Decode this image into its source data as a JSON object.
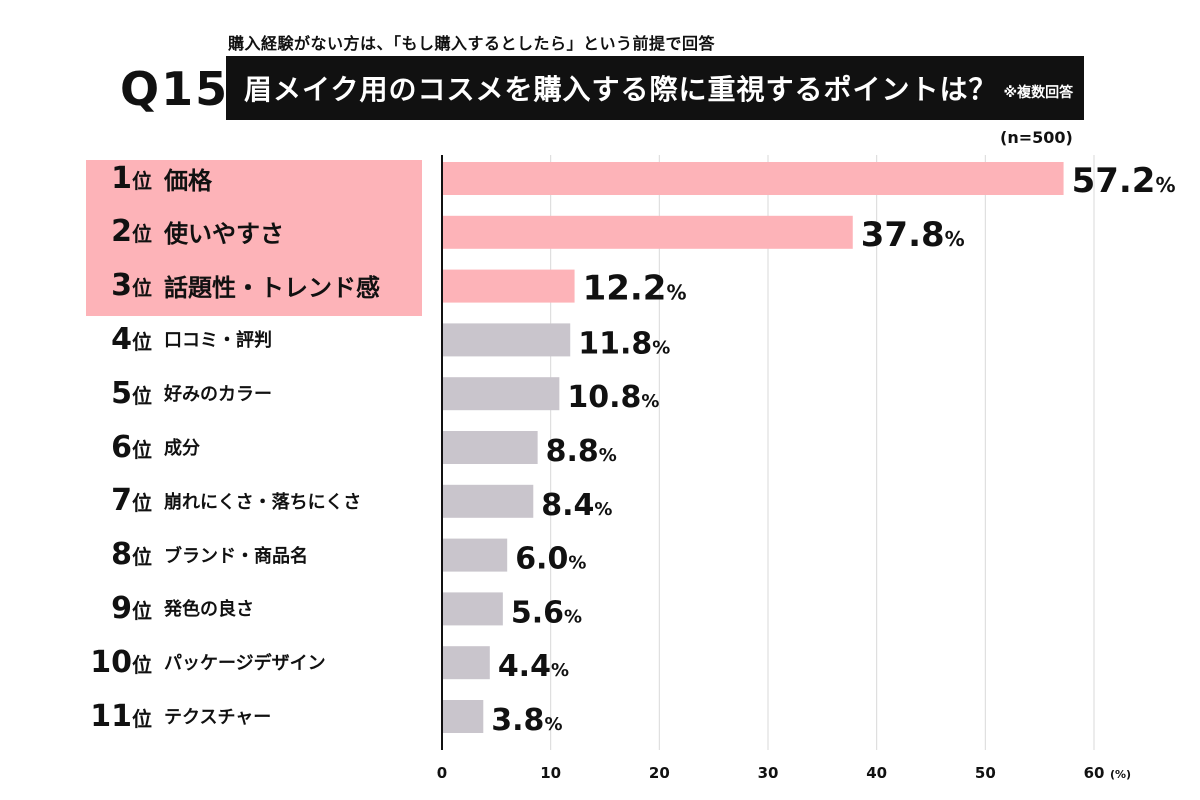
{
  "header": {
    "subnote": "購入経験がない方は、「もし購入するとしたら」という前提で回答",
    "question_number": "Q15",
    "title": "眉メイク用のコスメを購入する際に重視するポイントは？",
    "title_note": "※複数回答",
    "sample_size": "(n=500)"
  },
  "colors": {
    "top3": "#fdb3b8",
    "rest": "#c9c5cc",
    "title_bg": "#111111",
    "grid": "#d9d9d9"
  },
  "chart_data": {
    "type": "bar",
    "orientation": "horizontal",
    "unit": "%",
    "xlim": [
      0,
      60
    ],
    "x_ticks": [
      "0",
      "10",
      "20",
      "30",
      "40",
      "50",
      "60"
    ],
    "x_unit_label": "(%)",
    "grid": true,
    "categories": [
      {
        "rank": "1",
        "rank_suffix": "位",
        "label": "価格",
        "value": 57.2,
        "value_label": "57.2"
      },
      {
        "rank": "2",
        "rank_suffix": "位",
        "label": "使いやすさ",
        "value": 37.8,
        "value_label": "37.8"
      },
      {
        "rank": "3",
        "rank_suffix": "位",
        "label": "話題性・トレンド感",
        "value": 12.2,
        "value_label": "12.2"
      },
      {
        "rank": "4",
        "rank_suffix": "位",
        "label": "口コミ・評判",
        "value": 11.8,
        "value_label": "11.8"
      },
      {
        "rank": "5",
        "rank_suffix": "位",
        "label": "好みのカラー",
        "value": 10.8,
        "value_label": "10.8"
      },
      {
        "rank": "6",
        "rank_suffix": "位",
        "label": "成分",
        "value": 8.8,
        "value_label": "8.8"
      },
      {
        "rank": "7",
        "rank_suffix": "位",
        "label": "崩れにくさ・落ちにくさ",
        "value": 8.4,
        "value_label": "8.4"
      },
      {
        "rank": "8",
        "rank_suffix": "位",
        "label": "ブランド・商品名",
        "value": 6.0,
        "value_label": "6.0"
      },
      {
        "rank": "9",
        "rank_suffix": "位",
        "label": "発色の良さ",
        "value": 5.6,
        "value_label": "5.6"
      },
      {
        "rank": "10",
        "rank_suffix": "位",
        "label": "パッケージデザイン",
        "value": 4.4,
        "value_label": "4.4"
      },
      {
        "rank": "11",
        "rank_suffix": "位",
        "label": "テクスチャー",
        "value": 3.8,
        "value_label": "3.8"
      }
    ]
  }
}
